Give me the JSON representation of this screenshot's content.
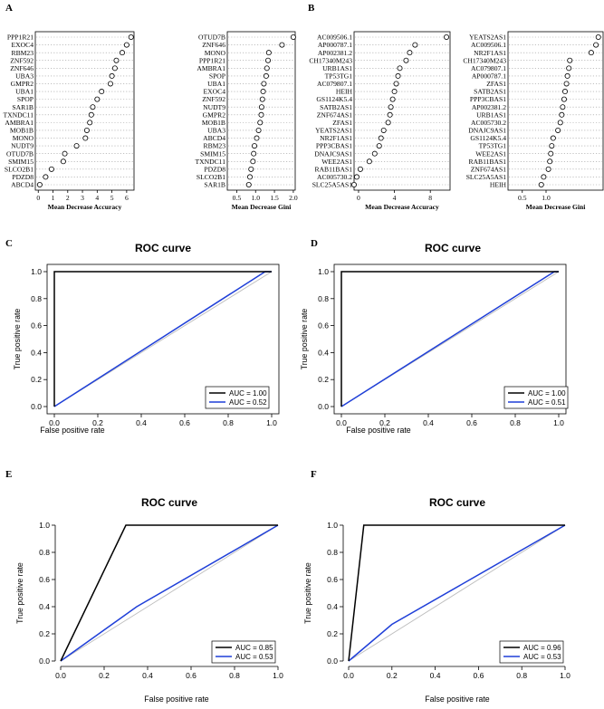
{
  "panels": {
    "A": {
      "letter": "A",
      "accuracy": {
        "xlabel": "Mean Decrease Accuracy",
        "xlim": [
          -0.2,
          6.5
        ],
        "ticks": [
          0,
          1,
          2,
          3,
          4,
          5,
          6
        ],
        "items": [
          {
            "label": "PPP1R21",
            "value": 6.3
          },
          {
            "label": "EXOC4",
            "value": 6.0
          },
          {
            "label": "RBM23",
            "value": 5.7
          },
          {
            "label": "ZNF592",
            "value": 5.3
          },
          {
            "label": "ZNF646",
            "value": 5.2
          },
          {
            "label": "UBA3",
            "value": 5.0
          },
          {
            "label": "GMPR2",
            "value": 4.9
          },
          {
            "label": "UBA1",
            "value": 4.3
          },
          {
            "label": "SPOP",
            "value": 4.0
          },
          {
            "label": "SAR1B",
            "value": 3.7
          },
          {
            "label": "TXNDC11",
            "value": 3.6
          },
          {
            "label": "AMBRA1",
            "value": 3.5
          },
          {
            "label": "MOB1B",
            "value": 3.3
          },
          {
            "label": "MONO",
            "value": 3.2
          },
          {
            "label": "NUDT9",
            "value": 2.6
          },
          {
            "label": "OTUD7B",
            "value": 1.8
          },
          {
            "label": "SMIM15",
            "value": 1.7
          },
          {
            "label": "SLCO2B1",
            "value": 0.9
          },
          {
            "label": "PDZD8",
            "value": 0.5
          },
          {
            "label": "ABCD4",
            "value": 0.1
          }
        ]
      },
      "gini": {
        "xlabel": "Mean Decrease Gini",
        "xlim": [
          0.25,
          2.05
        ],
        "ticks": [
          0.5,
          1.0,
          1.5,
          2.0
        ],
        "tick_labels": [
          "0.5",
          "1.0",
          "1.5",
          "2.0"
        ],
        "items": [
          {
            "label": "OTUD7B",
            "value": 2.0
          },
          {
            "label": "ZNF646",
            "value": 1.7
          },
          {
            "label": "MONO",
            "value": 1.35
          },
          {
            "label": "PPP1R21",
            "value": 1.33
          },
          {
            "label": "AMBRA1",
            "value": 1.3
          },
          {
            "label": "SPOP",
            "value": 1.28
          },
          {
            "label": "UBA1",
            "value": 1.22
          },
          {
            "label": "EXOC4",
            "value": 1.2
          },
          {
            "label": "ZNF592",
            "value": 1.18
          },
          {
            "label": "NUDT9",
            "value": 1.16
          },
          {
            "label": "GMPR2",
            "value": 1.15
          },
          {
            "label": "MOB1B",
            "value": 1.12
          },
          {
            "label": "UBA3",
            "value": 1.08
          },
          {
            "label": "ABCD4",
            "value": 1.03
          },
          {
            "label": "RBM23",
            "value": 0.97
          },
          {
            "label": "SMIM15",
            "value": 0.95
          },
          {
            "label": "TXNDC11",
            "value": 0.93
          },
          {
            "label": "PDZD8",
            "value": 0.88
          },
          {
            "label": "SLCO2B1",
            "value": 0.85
          },
          {
            "label": "SAR1B",
            "value": 0.82
          }
        ]
      }
    },
    "B": {
      "letter": "B",
      "accuracy": {
        "xlabel": "Mean Decrease Accuracy",
        "xlim": [
          -0.5,
          10.2
        ],
        "ticks": [
          0,
          4,
          8
        ],
        "items": [
          {
            "label": "AC009506.1",
            "value": 9.8
          },
          {
            "label": "AP000787.1",
            "value": 6.3
          },
          {
            "label": "AP002381.2",
            "value": 5.7
          },
          {
            "label": "CH17340M243",
            "value": 5.3
          },
          {
            "label": "URB1AS1",
            "value": 4.6
          },
          {
            "label": "TP53TG1",
            "value": 4.4
          },
          {
            "label": "AC079807.1",
            "value": 4.2
          },
          {
            "label": "HEIH",
            "value": 4.0
          },
          {
            "label": "GS1124K5.4",
            "value": 3.8
          },
          {
            "label": "SATB2AS1",
            "value": 3.6
          },
          {
            "label": "ZNF674AS1",
            "value": 3.5
          },
          {
            "label": "ZFAS1",
            "value": 3.3
          },
          {
            "label": "YEATS2AS1",
            "value": 2.8
          },
          {
            "label": "NR2F1AS1",
            "value": 2.5
          },
          {
            "label": "PPP3CBAS1",
            "value": 2.3
          },
          {
            "label": "DNAJC9AS1",
            "value": 1.8
          },
          {
            "label": "WEE2AS1",
            "value": 1.2
          },
          {
            "label": "RAB11BAS1",
            "value": 0.2
          },
          {
            "label": "AC005730.2",
            "value": -0.2
          },
          {
            "label": "SLC25A5AS1",
            "value": -0.5
          }
        ]
      },
      "gini": {
        "xlabel": "Mean Decrease Gini",
        "xlim": [
          0.2,
          2.2
        ],
        "ticks": [
          0.5,
          1.0
        ],
        "tick_labels": [
          "0.5",
          "1.0"
        ],
        "items": [
          {
            "label": "YEATS2AS1",
            "value": 2.1
          },
          {
            "label": "AC009506.1",
            "value": 2.05
          },
          {
            "label": "NR2F1AS1",
            "value": 1.95
          },
          {
            "label": "CH17340M243",
            "value": 1.5
          },
          {
            "label": "AC079807.1",
            "value": 1.48
          },
          {
            "label": "AP000787.1",
            "value": 1.45
          },
          {
            "label": "ZFAS1",
            "value": 1.43
          },
          {
            "label": "SATB2AS1",
            "value": 1.4
          },
          {
            "label": "PPP3CBAS1",
            "value": 1.38
          },
          {
            "label": "AP002381.2",
            "value": 1.35
          },
          {
            "label": "URB1AS1",
            "value": 1.33
          },
          {
            "label": "AC005730.2",
            "value": 1.3
          },
          {
            "label": "DNAJC9AS1",
            "value": 1.25
          },
          {
            "label": "GS1124K5.4",
            "value": 1.15
          },
          {
            "label": "TP53TG1",
            "value": 1.12
          },
          {
            "label": "WEE2AS1",
            "value": 1.1
          },
          {
            "label": "RAB11BAS1",
            "value": 1.08
          },
          {
            "label": "ZNF674AS1",
            "value": 1.05
          },
          {
            "label": "SLC25A5AS1",
            "value": 0.95
          },
          {
            "label": "HEIH",
            "value": 0.9
          }
        ]
      }
    },
    "C": {
      "letter": "C",
      "title": "ROC curve"
    },
    "D": {
      "letter": "D",
      "title": "ROC curve"
    },
    "E": {
      "letter": "E",
      "title": "ROC curve"
    },
    "F": {
      "letter": "F",
      "title": "ROC curve"
    }
  },
  "chart_data": [
    {
      "id": "C",
      "type": "line",
      "title": "ROC curve",
      "xlabel": "False positive rate",
      "ylabel": "True positive rate",
      "xlim": [
        0,
        1
      ],
      "ylim": [
        0,
        1
      ],
      "ticks": [
        "0.0",
        "0.2",
        "0.4",
        "0.6",
        "0.8",
        "1.0"
      ],
      "series": [
        {
          "name": "AUC = 1.00",
          "color": "#000000",
          "x": [
            0,
            0,
            1
          ],
          "y": [
            0,
            1,
            1
          ]
        },
        {
          "name": "AUC = 0.52",
          "color": "#1f3fd8",
          "x": [
            0,
            0.97,
            1
          ],
          "y": [
            0,
            1,
            1
          ]
        }
      ],
      "diagonal": true,
      "legend": "bottom-right"
    },
    {
      "id": "D",
      "type": "line",
      "title": "ROC curve",
      "xlabel": "False positive rate",
      "ylabel": "True positive rate",
      "xlim": [
        0,
        1
      ],
      "ylim": [
        0,
        1
      ],
      "ticks": [
        "0.0",
        "0.2",
        "0.4",
        "0.6",
        "0.8",
        "1.0"
      ],
      "series": [
        {
          "name": "AUC = 1.00",
          "color": "#000000",
          "x": [
            0,
            0,
            1
          ],
          "y": [
            0,
            1,
            1
          ]
        },
        {
          "name": "AUC = 0.51",
          "color": "#1f3fd8",
          "x": [
            0,
            0.98,
            1
          ],
          "y": [
            0,
            1,
            1
          ]
        }
      ],
      "diagonal": true,
      "legend": "bottom-right"
    },
    {
      "id": "E",
      "type": "line",
      "title": "ROC curve",
      "xlabel": "False positive rate",
      "ylabel": "True positive rate",
      "xlim": [
        0,
        1
      ],
      "ylim": [
        0,
        1
      ],
      "ticks": [
        "0.0",
        "0.2",
        "0.4",
        "0.6",
        "0.8",
        "1.0"
      ],
      "series": [
        {
          "name": "AUC = 0.85",
          "color": "#000000",
          "x": [
            0,
            0.3,
            1
          ],
          "y": [
            0,
            1,
            1
          ]
        },
        {
          "name": "AUC = 0.53",
          "color": "#1f3fd8",
          "x": [
            0,
            0.35,
            1
          ],
          "y": [
            0,
            0.4,
            1
          ]
        }
      ],
      "diagonal": true,
      "legend": "bottom-right"
    },
    {
      "id": "F",
      "type": "line",
      "title": "ROC curve",
      "xlabel": "False positive rate",
      "ylabel": "True positive rate",
      "xlim": [
        0,
        1
      ],
      "ylim": [
        0,
        1
      ],
      "ticks": [
        "0.0",
        "0.2",
        "0.4",
        "0.6",
        "0.8",
        "1.0"
      ],
      "series": [
        {
          "name": "AUC = 0.96",
          "color": "#000000",
          "x": [
            0,
            0.07,
            1
          ],
          "y": [
            0,
            1,
            1
          ]
        },
        {
          "name": "AUC = 0.53",
          "color": "#1f3fd8",
          "x": [
            0,
            0.2,
            1
          ],
          "y": [
            0,
            0.27,
            1
          ]
        }
      ],
      "diagonal": true,
      "legend": "bottom-right"
    }
  ]
}
